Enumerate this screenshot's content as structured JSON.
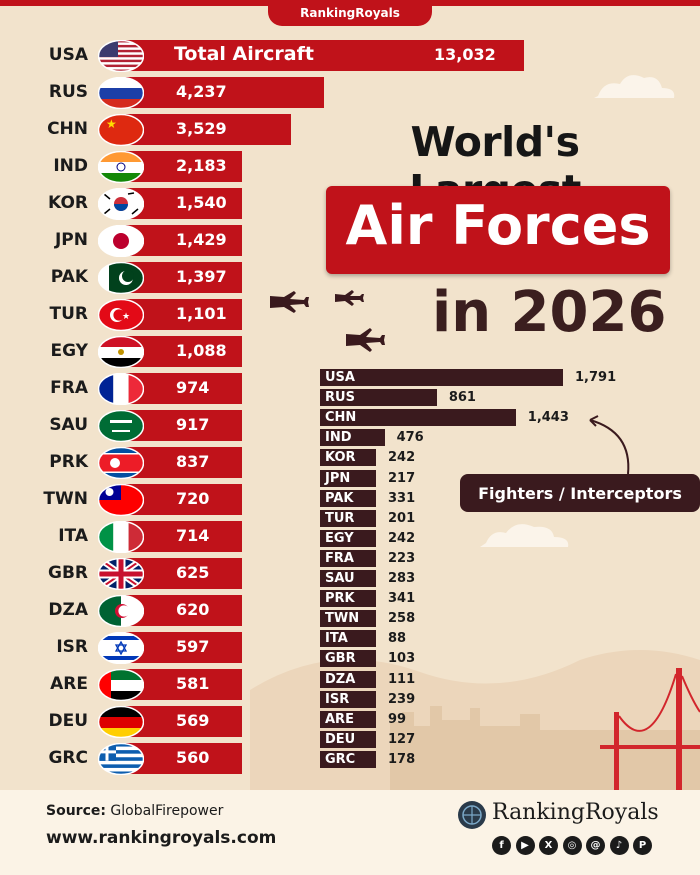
{
  "brand": {
    "name": "RankingRoyals"
  },
  "title": {
    "line1": "World's Largest",
    "line2": "Air Forces",
    "line3": "in 2026"
  },
  "chart_data": [
    {
      "type": "bar",
      "orientation": "horizontal",
      "series_label": "Total Aircraft",
      "categories": [
        "USA",
        "RUS",
        "CHN",
        "IND",
        "KOR",
        "JPN",
        "PAK",
        "TUR",
        "EGY",
        "FRA",
        "SAU",
        "PRK",
        "TWN",
        "ITA",
        "GBR",
        "DZA",
        "ISR",
        "ARE",
        "DEU",
        "GRC"
      ],
      "values": [
        13032,
        4237,
        3529,
        2183,
        1540,
        1429,
        1397,
        1101,
        1088,
        974,
        917,
        837,
        720,
        714,
        625,
        620,
        597,
        581,
        569,
        560
      ],
      "value_labels": [
        "13,032",
        "4,237",
        "3,529",
        "2,183",
        "1,540",
        "1,429",
        "1,397",
        "1,101",
        "1,088",
        "974",
        "917",
        "837",
        "720",
        "714",
        "625",
        "620",
        "597",
        "581",
        "569",
        "560"
      ],
      "color": "#c0121a"
    },
    {
      "type": "bar",
      "orientation": "horizontal",
      "series_label": "Fighters / Interceptors",
      "categories": [
        "USA",
        "RUS",
        "CHN",
        "IND",
        "KOR",
        "JPN",
        "PAK",
        "TUR",
        "EGY",
        "FRA",
        "SAU",
        "PRK",
        "TWN",
        "ITA",
        "GBR",
        "DZA",
        "ISR",
        "ARE",
        "DEU",
        "GRC"
      ],
      "values": [
        1791,
        861,
        1443,
        476,
        242,
        217,
        331,
        201,
        242,
        223,
        283,
        341,
        258,
        88,
        103,
        111,
        239,
        99,
        127,
        178
      ],
      "value_labels": [
        "1,791",
        "861",
        "1,443",
        "476",
        "242",
        "217",
        "331",
        "201",
        "242",
        "223",
        "283",
        "341",
        "258",
        "88",
        "103",
        "111",
        "239",
        "99",
        "127",
        "178"
      ],
      "color": "#3a1a1e"
    }
  ],
  "footer": {
    "source_label": "Source:",
    "source_name": "GlobalFirepower",
    "website": "www.rankingroyals.com",
    "logo_name": "RankingRoyals",
    "social_icons": [
      "facebook-icon",
      "youtube-icon",
      "x-icon",
      "instagram-icon",
      "threads-icon",
      "tiktok-icon",
      "pinterest-icon"
    ]
  }
}
